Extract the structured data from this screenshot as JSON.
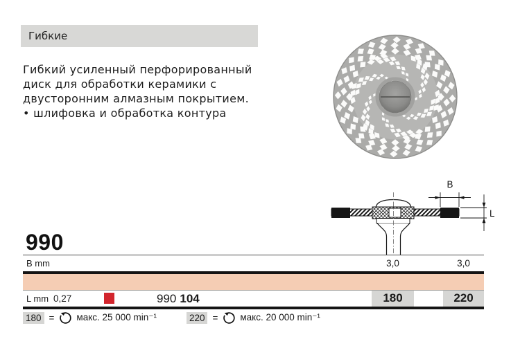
{
  "category": {
    "label": "Гибкие"
  },
  "description": {
    "lines": [
      "Гибкий усиленный перфорированный",
      "диск для обработки керамики с",
      "двусторонним алмазным покрытием.",
      "• шлифовка и обработка контура"
    ]
  },
  "diagram": {
    "b_label": "B",
    "l_label": "L"
  },
  "table": {
    "product_number": "990",
    "b_row": {
      "label": "B mm",
      "values": [
        "3,0",
        "3,0"
      ]
    },
    "l_row": {
      "label": "L mm",
      "value": "0,27",
      "code_prefix": "990",
      "code_bold": "104",
      "sizes": [
        "180",
        "220"
      ]
    }
  },
  "legend": {
    "items": [
      {
        "size": "180",
        "separator": "=",
        "text": "макс. 25 000 min⁻¹"
      },
      {
        "size": "220",
        "separator": "=",
        "text": "макс. 20 000 min⁻¹"
      }
    ]
  },
  "colors": {
    "accent_red": "#d2252d",
    "row_salmon": "#f5cdb4",
    "header_gray": "#d8d8d6",
    "cell_gray": "#d6d6d4",
    "rule_black": "#141414"
  }
}
